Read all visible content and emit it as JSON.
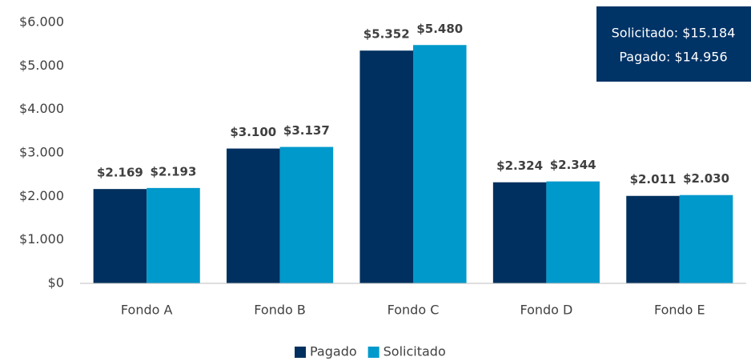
{
  "chart_data": {
    "type": "bar",
    "categories": [
      "Fondo A",
      "Fondo B",
      "Fondo C",
      "Fondo D",
      "Fondo E"
    ],
    "series": [
      {
        "name": "Pagado",
        "color": "#00305f",
        "values": [
          2169,
          3100,
          5352,
          2324,
          2011
        ],
        "value_labels": [
          "$2.169",
          "$3.100",
          "$5.352",
          "$2.324",
          "$2.011"
        ]
      },
      {
        "name": "Solicitado",
        "color": "#0099cc",
        "values": [
          2193,
          3137,
          5480,
          2344,
          2030
        ],
        "value_labels": [
          "$2.193",
          "$3.137",
          "$5.480",
          "$2.344",
          "$2.030"
        ]
      }
    ],
    "ylim": [
      0,
      6000
    ],
    "yticks": [
      {
        "value": 0,
        "label": "$0"
      },
      {
        "value": 1000,
        "label": "$1.000"
      },
      {
        "value": 2000,
        "label": "$2.000"
      },
      {
        "value": 3000,
        "label": "$3.000"
      },
      {
        "value": 4000,
        "label": "$4.000"
      },
      {
        "value": 5000,
        "label": "$5.000"
      },
      {
        "value": 6000,
        "label": "$6.000"
      }
    ],
    "grid": false,
    "legend": "bottom",
    "annotations": [
      "Solicitado: $15.184",
      "Pagado: $14.956"
    ]
  }
}
